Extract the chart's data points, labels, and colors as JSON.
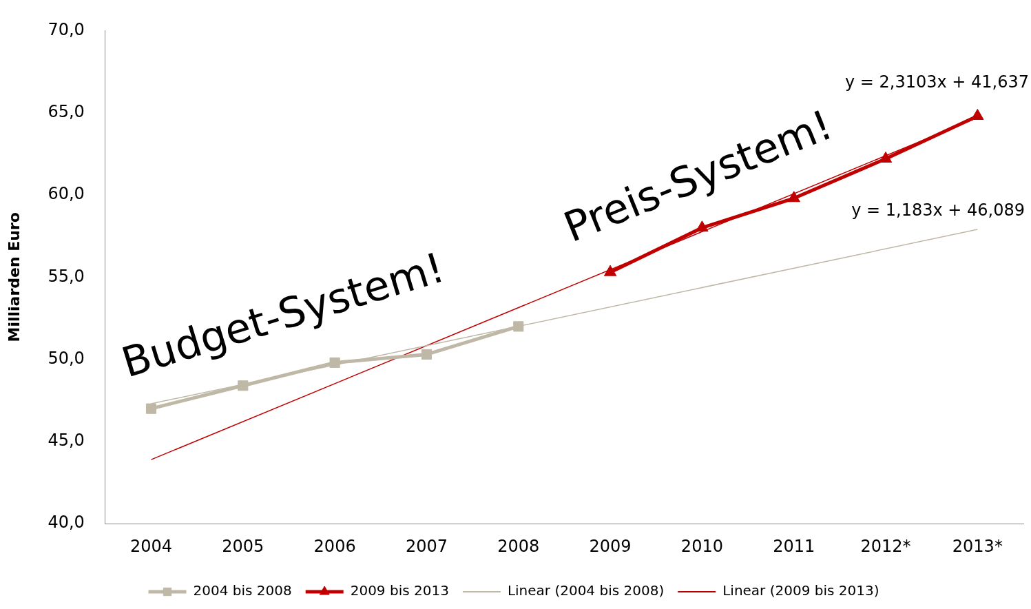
{
  "chart_data": {
    "type": "line",
    "ylabel": "Milliarden Euro",
    "categories": [
      "2004",
      "2005",
      "2006",
      "2007",
      "2008",
      "2009",
      "2010",
      "2011",
      "2012*",
      "2013*"
    ],
    "series": [
      {
        "name": "2004 bis 2008",
        "color": "#bfb8a6",
        "marker": "square",
        "values": [
          47.0,
          48.4,
          49.8,
          50.3,
          52.0,
          null,
          null,
          null,
          null,
          null
        ]
      },
      {
        "name": "2009 bis 2013",
        "color": "#c00000",
        "marker": "triangle",
        "values": [
          null,
          null,
          null,
          null,
          null,
          55.3,
          58.0,
          59.8,
          62.2,
          64.8
        ]
      },
      {
        "name": "Linear (2004 bis 2008)",
        "color": "#bfb8a6",
        "marker": "none",
        "values": [
          47.3,
          null,
          null,
          null,
          null,
          null,
          null,
          null,
          null,
          57.9
        ]
      },
      {
        "name": "Linear (2009 bis 2013)",
        "color": "#c00000",
        "marker": "none",
        "values": [
          43.9,
          null,
          null,
          null,
          null,
          null,
          null,
          null,
          null,
          64.7
        ]
      }
    ],
    "ylim": [
      40,
      70
    ],
    "yticks": [
      {
        "value": 40,
        "label": "40,0"
      },
      {
        "value": 45,
        "label": "45,0"
      },
      {
        "value": 50,
        "label": "50,0"
      },
      {
        "value": 55,
        "label": "55,0"
      },
      {
        "value": 60,
        "label": "60,0"
      },
      {
        "value": 65,
        "label": "65,0"
      },
      {
        "value": 70,
        "label": "70,0"
      }
    ],
    "grid": false,
    "legend": "bottom",
    "line_style": "solid",
    "annotations": [
      "Budget-System!",
      "Preis-System!",
      "y = 2,3103x + 41,637",
      "y = 1,183x + 46,089"
    ]
  }
}
